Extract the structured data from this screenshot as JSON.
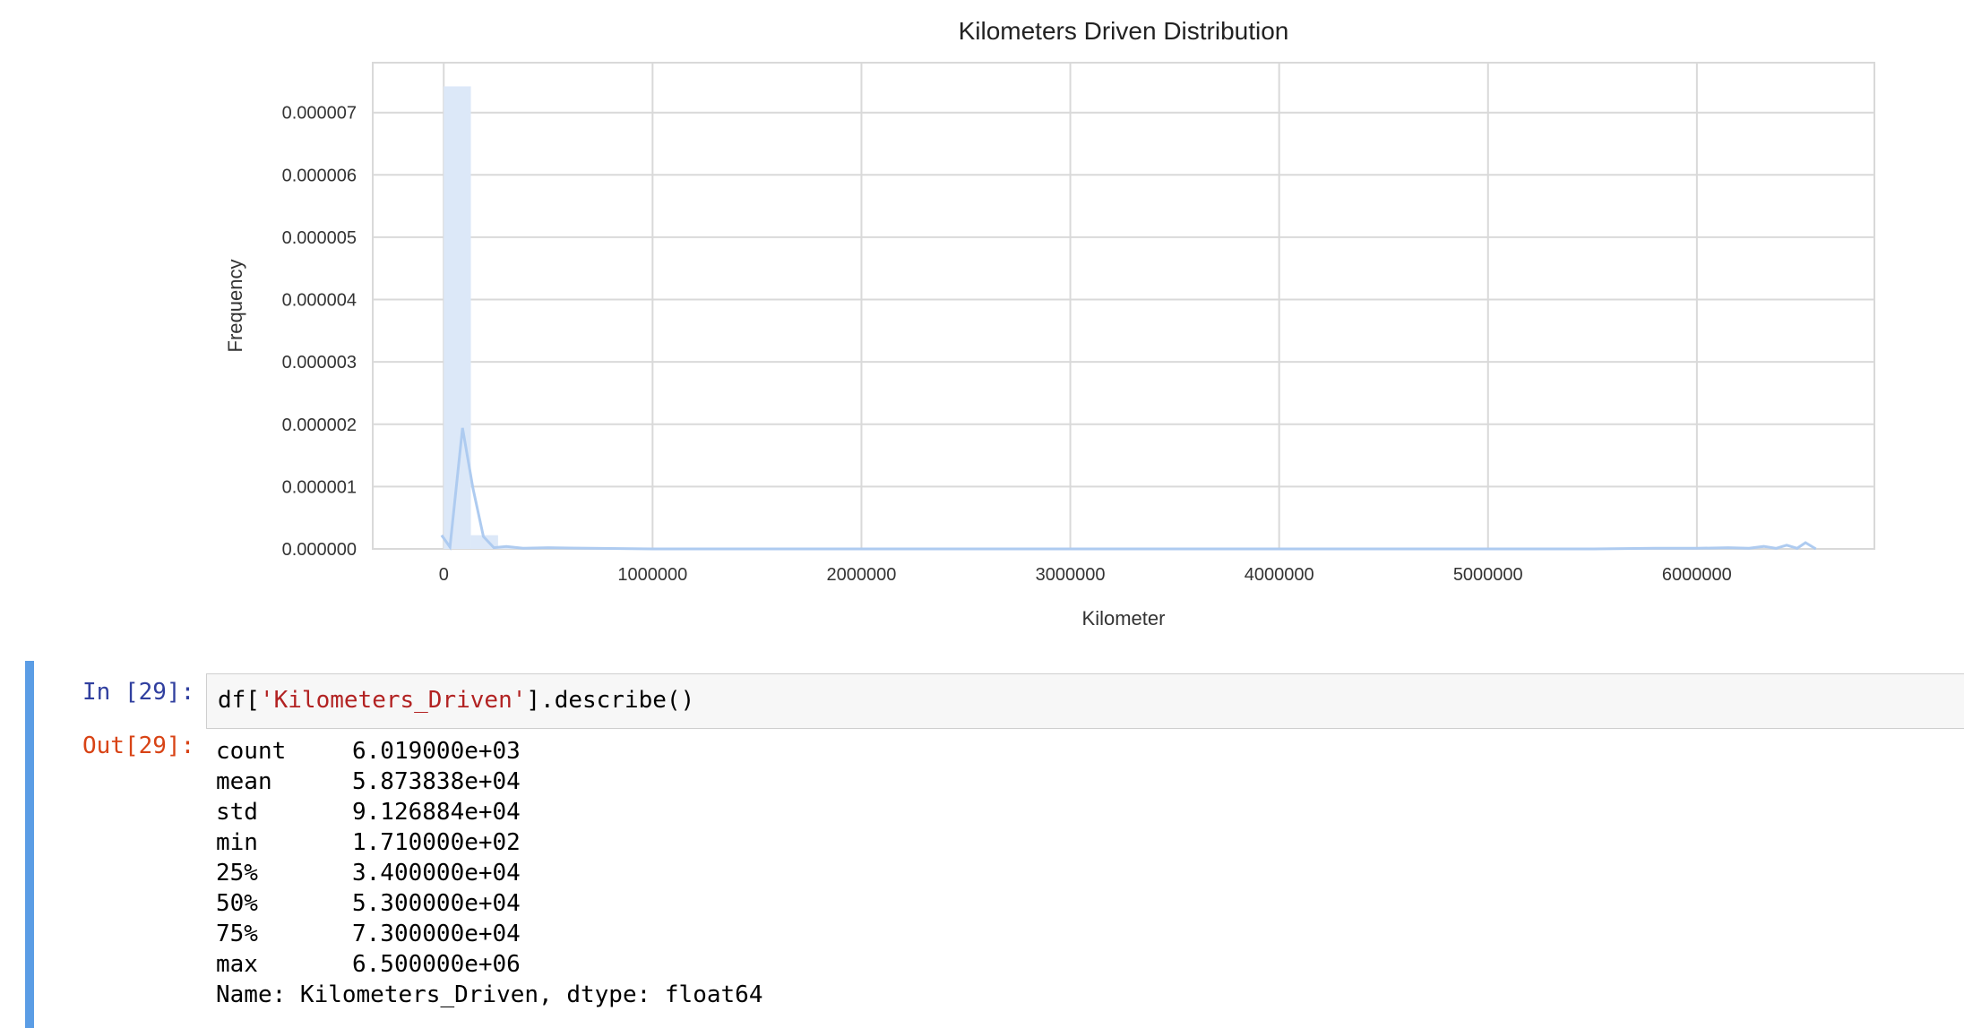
{
  "chart_data": {
    "type": "bar",
    "title": "Kilometers Driven Distribution",
    "xlabel": "Kilometer",
    "ylabel": "Frequency",
    "xlim": [
      -340000,
      6850000
    ],
    "ylim": [
      0,
      7.8e-06
    ],
    "x_ticks": [
      0,
      1000000,
      2000000,
      3000000,
      4000000,
      5000000,
      6000000
    ],
    "x_tick_labels": [
      "0",
      "1000000",
      "2000000",
      "3000000",
      "4000000",
      "5000000",
      "6000000"
    ],
    "y_ticks": [
      0,
      1e-06,
      2e-06,
      3e-06,
      4e-06,
      5e-06,
      6e-06,
      7e-06
    ],
    "y_tick_labels": [
      "0.000000",
      "0.000001",
      "0.000002",
      "0.000003",
      "0.000004",
      "0.000005",
      "0.000006",
      "0.000007"
    ],
    "grid": true,
    "bins": [
      {
        "x0": 0,
        "x1": 130000,
        "y": 7.42e-06
      },
      {
        "x0": 130000,
        "x1": 260000,
        "y": 2.2e-07
      },
      {
        "x0": 260000,
        "x1": 390000,
        "y": 3e-08
      }
    ],
    "kde": {
      "x": [
        -10000,
        30000,
        90000,
        140000,
        190000,
        240000,
        300000,
        380000,
        500000,
        700000,
        1000000,
        2000000,
        3000000,
        4000000,
        5000000,
        5500000,
        5800000,
        6000000,
        6150000,
        6250000,
        6320000,
        6380000,
        6430000,
        6480000,
        6520000,
        6570000
      ],
      "y": [
        2.2e-07,
        3e-08,
        1.94e-06,
        9.7e-07,
        2e-07,
        2e-08,
        4e-08,
        1e-08,
        2e-08,
        1e-08,
        0.0,
        0.0,
        0.0,
        0.0,
        0.0,
        0.0,
        1e-08,
        1e-08,
        2e-08,
        1e-08,
        4e-08,
        1e-08,
        6e-08,
        1e-08,
        1e-07,
        0.0
      ]
    },
    "colors": {
      "bar": "#dce8f8",
      "line": "#aecbf0",
      "grid": "#d9d9d9",
      "text": "#333333"
    }
  },
  "notebook": {
    "in_prompt": "In [29]:",
    "out_prompt": "Out[29]:",
    "code_prefix": "df[",
    "code_string": "'Kilometers_Driven'",
    "code_suffix": "].describe()",
    "stats": [
      {
        "key": "count",
        "value": "6.019000e+03"
      },
      {
        "key": "mean",
        "value": "5.873838e+04"
      },
      {
        "key": "std",
        "value": "9.126884e+04"
      },
      {
        "key": "min",
        "value": "1.710000e+02"
      },
      {
        "key": "25%",
        "value": "3.400000e+04"
      },
      {
        "key": "50%",
        "value": "5.300000e+04"
      },
      {
        "key": "75%",
        "value": "7.300000e+04"
      },
      {
        "key": "max",
        "value": "6.500000e+06"
      }
    ],
    "footer": "Name: Kilometers_Driven, dtype: float64"
  }
}
